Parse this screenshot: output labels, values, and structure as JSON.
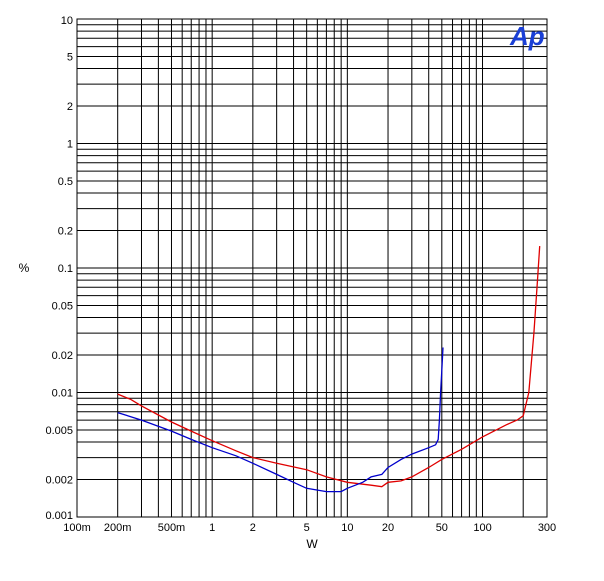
{
  "chart_data": {
    "type": "line",
    "xlabel": "W",
    "ylabel": "%",
    "logo_text": "Ap",
    "x_scale": "log",
    "y_scale": "log",
    "xlim": [
      0.1,
      300
    ],
    "ylim": [
      0.001,
      10
    ],
    "grid": true,
    "x_ticks": [
      {
        "value": 0.1,
        "label": "100m"
      },
      {
        "value": 0.2,
        "label": "200m"
      },
      {
        "value": 0.5,
        "label": "500m"
      },
      {
        "value": 1,
        "label": "1"
      },
      {
        "value": 2,
        "label": "2"
      },
      {
        "value": 5,
        "label": "5"
      },
      {
        "value": 10,
        "label": "10"
      },
      {
        "value": 20,
        "label": "20"
      },
      {
        "value": 50,
        "label": "50"
      },
      {
        "value": 100,
        "label": "100"
      },
      {
        "value": 300,
        "label": "300"
      }
    ],
    "y_ticks": [
      {
        "value": 10,
        "label": "10"
      },
      {
        "value": 5,
        "label": "5"
      },
      {
        "value": 2,
        "label": "2"
      },
      {
        "value": 1,
        "label": "1"
      },
      {
        "value": 0.5,
        "label": "0.5"
      },
      {
        "value": 0.2,
        "label": "0.2"
      },
      {
        "value": 0.1,
        "label": "0.1"
      },
      {
        "value": 0.05,
        "label": "0.05"
      },
      {
        "value": 0.02,
        "label": "0.02"
      },
      {
        "value": 0.01,
        "label": "0.01"
      },
      {
        "value": 0.005,
        "label": "0.005"
      },
      {
        "value": 0.002,
        "label": "0.002"
      },
      {
        "value": 0.001,
        "label": "0.001"
      }
    ],
    "series": [
      {
        "color": "#e00000",
        "points": [
          [
            0.2,
            0.0097
          ],
          [
            0.25,
            0.0088
          ],
          [
            0.3,
            0.0078
          ],
          [
            0.4,
            0.0066
          ],
          [
            0.5,
            0.0058
          ],
          [
            0.7,
            0.0049
          ],
          [
            1,
            0.0041
          ],
          [
            1.5,
            0.0034
          ],
          [
            2,
            0.003
          ],
          [
            3,
            0.0027
          ],
          [
            5,
            0.0024
          ],
          [
            7,
            0.0021
          ],
          [
            10,
            0.0019
          ],
          [
            15,
            0.0018
          ],
          [
            18,
            0.00175
          ],
          [
            20,
            0.0019
          ],
          [
            25,
            0.00195
          ],
          [
            30,
            0.0021
          ],
          [
            40,
            0.0025
          ],
          [
            50,
            0.0029
          ],
          [
            70,
            0.0035
          ],
          [
            100,
            0.0044
          ],
          [
            150,
            0.0055
          ],
          [
            180,
            0.006
          ],
          [
            200,
            0.0065
          ],
          [
            220,
            0.01
          ],
          [
            240,
            0.03
          ],
          [
            255,
            0.08
          ],
          [
            265,
            0.15
          ]
        ]
      },
      {
        "color": "#0000cc",
        "points": [
          [
            0.2,
            0.0069
          ],
          [
            0.3,
            0.006
          ],
          [
            0.5,
            0.0049
          ],
          [
            0.7,
            0.0042
          ],
          [
            1,
            0.0036
          ],
          [
            1.5,
            0.0031
          ],
          [
            2,
            0.0027
          ],
          [
            3,
            0.0022
          ],
          [
            4,
            0.0019
          ],
          [
            5,
            0.0017
          ],
          [
            7,
            0.0016
          ],
          [
            9,
            0.0016
          ],
          [
            10,
            0.0017
          ],
          [
            13,
            0.0019
          ],
          [
            15,
            0.0021
          ],
          [
            18,
            0.0022
          ],
          [
            20,
            0.0025
          ],
          [
            25,
            0.0029
          ],
          [
            30,
            0.0032
          ],
          [
            40,
            0.0036
          ],
          [
            45,
            0.0038
          ],
          [
            47,
            0.0042
          ],
          [
            48,
            0.006
          ],
          [
            49,
            0.01
          ],
          [
            50,
            0.015
          ],
          [
            51,
            0.023
          ]
        ]
      }
    ]
  }
}
